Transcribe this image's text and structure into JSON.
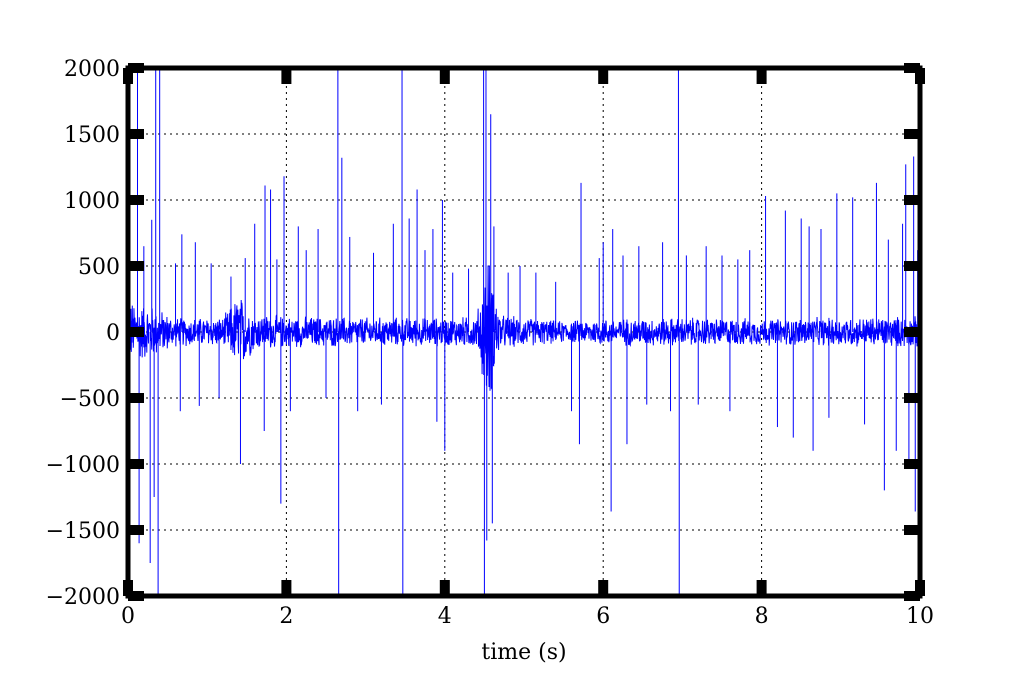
{
  "chart_data": {
    "type": "line",
    "title": "",
    "xlabel": "time (s)",
    "ylabel": "",
    "xlim": [
      0,
      10
    ],
    "ylim": [
      -2000,
      2000
    ],
    "x_ticks": [
      0,
      2,
      4,
      6,
      8,
      10
    ],
    "x_tick_labels": [
      "0",
      "2",
      "4",
      "6",
      "8",
      "10"
    ],
    "y_ticks": [
      2000,
      1500,
      1000,
      500,
      0,
      -500,
      -1000,
      -1500,
      -2000
    ],
    "y_tick_labels": [
      "2000",
      "1500",
      "1000",
      "500",
      "0",
      "−500",
      "−1000",
      "−1500",
      "−2000"
    ],
    "grid": true,
    "series": [
      {
        "color": "#0000ff",
        "noise_envelope": [
          {
            "x": 0.0,
            "amp": 260
          },
          {
            "x": 0.3,
            "amp": 220
          },
          {
            "x": 0.6,
            "amp": 120
          },
          {
            "x": 1.2,
            "amp": 120
          },
          {
            "x": 1.4,
            "amp": 320
          },
          {
            "x": 1.6,
            "amp": 150
          },
          {
            "x": 2.0,
            "amp": 130
          },
          {
            "x": 3.0,
            "amp": 120
          },
          {
            "x": 4.0,
            "amp": 120
          },
          {
            "x": 4.4,
            "amp": 130
          },
          {
            "x": 4.55,
            "amp": 650
          },
          {
            "x": 4.7,
            "amp": 140
          },
          {
            "x": 5.5,
            "amp": 90
          },
          {
            "x": 6.0,
            "amp": 110
          },
          {
            "x": 7.0,
            "amp": 120
          },
          {
            "x": 8.0,
            "amp": 110
          },
          {
            "x": 9.0,
            "amp": 120
          },
          {
            "x": 10.0,
            "amp": 130
          }
        ],
        "spikes": [
          {
            "x": 0.12,
            "y": 2000
          },
          {
            "x": 0.14,
            "y": -1600
          },
          {
            "x": 0.2,
            "y": 650
          },
          {
            "x": 0.28,
            "y": -1750
          },
          {
            "x": 0.3,
            "y": 850
          },
          {
            "x": 0.33,
            "y": -1250
          },
          {
            "x": 0.35,
            "y": 2000
          },
          {
            "x": 0.38,
            "y": -2000
          },
          {
            "x": 0.4,
            "y": 2000
          },
          {
            "x": 0.6,
            "y": 520
          },
          {
            "x": 0.66,
            "y": -600
          },
          {
            "x": 0.68,
            "y": 740
          },
          {
            "x": 0.85,
            "y": 680
          },
          {
            "x": 0.9,
            "y": -560
          },
          {
            "x": 1.05,
            "y": 520
          },
          {
            "x": 1.15,
            "y": -500
          },
          {
            "x": 1.3,
            "y": 420
          },
          {
            "x": 1.42,
            "y": -1000
          },
          {
            "x": 1.48,
            "y": 560
          },
          {
            "x": 1.6,
            "y": 820
          },
          {
            "x": 1.72,
            "y": -750
          },
          {
            "x": 1.73,
            "y": 1110
          },
          {
            "x": 1.8,
            "y": 1080
          },
          {
            "x": 1.88,
            "y": 550
          },
          {
            "x": 1.93,
            "y": -1300
          },
          {
            "x": 1.97,
            "y": 1180
          },
          {
            "x": 2.05,
            "y": -600
          },
          {
            "x": 2.15,
            "y": 800
          },
          {
            "x": 2.25,
            "y": 620
          },
          {
            "x": 2.4,
            "y": 780
          },
          {
            "x": 2.5,
            "y": -500
          },
          {
            "x": 2.65,
            "y": 2000
          },
          {
            "x": 2.66,
            "y": -2000
          },
          {
            "x": 2.7,
            "y": 1320
          },
          {
            "x": 2.8,
            "y": 720
          },
          {
            "x": 2.9,
            "y": -600
          },
          {
            "x": 3.1,
            "y": 600
          },
          {
            "x": 3.2,
            "y": -550
          },
          {
            "x": 3.35,
            "y": 820
          },
          {
            "x": 3.46,
            "y": 2000
          },
          {
            "x": 3.47,
            "y": -2000
          },
          {
            "x": 3.55,
            "y": 860
          },
          {
            "x": 3.65,
            "y": 1080
          },
          {
            "x": 3.75,
            "y": 620
          },
          {
            "x": 3.85,
            "y": 780
          },
          {
            "x": 3.9,
            "y": -680
          },
          {
            "x": 3.97,
            "y": 1000
          },
          {
            "x": 4.0,
            "y": -900
          },
          {
            "x": 4.1,
            "y": 450
          },
          {
            "x": 4.3,
            "y": 480
          },
          {
            "x": 4.49,
            "y": 2000
          },
          {
            "x": 4.5,
            "y": -2000
          },
          {
            "x": 4.52,
            "y": 2000
          },
          {
            "x": 4.53,
            "y": -1580
          },
          {
            "x": 4.58,
            "y": 1650
          },
          {
            "x": 4.6,
            "y": -1450
          },
          {
            "x": 4.62,
            "y": 800
          },
          {
            "x": 4.8,
            "y": 450
          },
          {
            "x": 4.95,
            "y": 500
          },
          {
            "x": 5.15,
            "y": 450
          },
          {
            "x": 5.4,
            "y": 380
          },
          {
            "x": 5.6,
            "y": -600
          },
          {
            "x": 5.7,
            "y": -850
          },
          {
            "x": 5.72,
            "y": 1130
          },
          {
            "x": 5.95,
            "y": 560
          },
          {
            "x": 6.0,
            "y": 680
          },
          {
            "x": 6.1,
            "y": -1360
          },
          {
            "x": 6.12,
            "y": 780
          },
          {
            "x": 6.25,
            "y": 580
          },
          {
            "x": 6.3,
            "y": -850
          },
          {
            "x": 6.45,
            "y": 650
          },
          {
            "x": 6.55,
            "y": -550
          },
          {
            "x": 6.75,
            "y": 680
          },
          {
            "x": 6.85,
            "y": -600
          },
          {
            "x": 6.95,
            "y": 2000
          },
          {
            "x": 6.96,
            "y": -2000
          },
          {
            "x": 7.05,
            "y": 580
          },
          {
            "x": 7.2,
            "y": -550
          },
          {
            "x": 7.3,
            "y": 650
          },
          {
            "x": 7.5,
            "y": 580
          },
          {
            "x": 7.6,
            "y": -600
          },
          {
            "x": 7.7,
            "y": 550
          },
          {
            "x": 7.85,
            "y": 620
          },
          {
            "x": 8.05,
            "y": 1030
          },
          {
            "x": 8.2,
            "y": -720
          },
          {
            "x": 8.3,
            "y": 920
          },
          {
            "x": 8.4,
            "y": -800
          },
          {
            "x": 8.5,
            "y": 860
          },
          {
            "x": 8.6,
            "y": 800
          },
          {
            "x": 8.65,
            "y": -900
          },
          {
            "x": 8.75,
            "y": 780
          },
          {
            "x": 8.85,
            "y": -650
          },
          {
            "x": 8.95,
            "y": 1050
          },
          {
            "x": 9.15,
            "y": 1020
          },
          {
            "x": 9.3,
            "y": -700
          },
          {
            "x": 9.45,
            "y": 1130
          },
          {
            "x": 9.55,
            "y": -1200
          },
          {
            "x": 9.6,
            "y": 700
          },
          {
            "x": 9.7,
            "y": -900
          },
          {
            "x": 9.78,
            "y": 820
          },
          {
            "x": 9.82,
            "y": 1270
          },
          {
            "x": 9.86,
            "y": -1030
          },
          {
            "x": 9.92,
            "y": 1330
          },
          {
            "x": 9.94,
            "y": -1360
          },
          {
            "x": 9.97,
            "y": 620
          }
        ]
      }
    ]
  }
}
